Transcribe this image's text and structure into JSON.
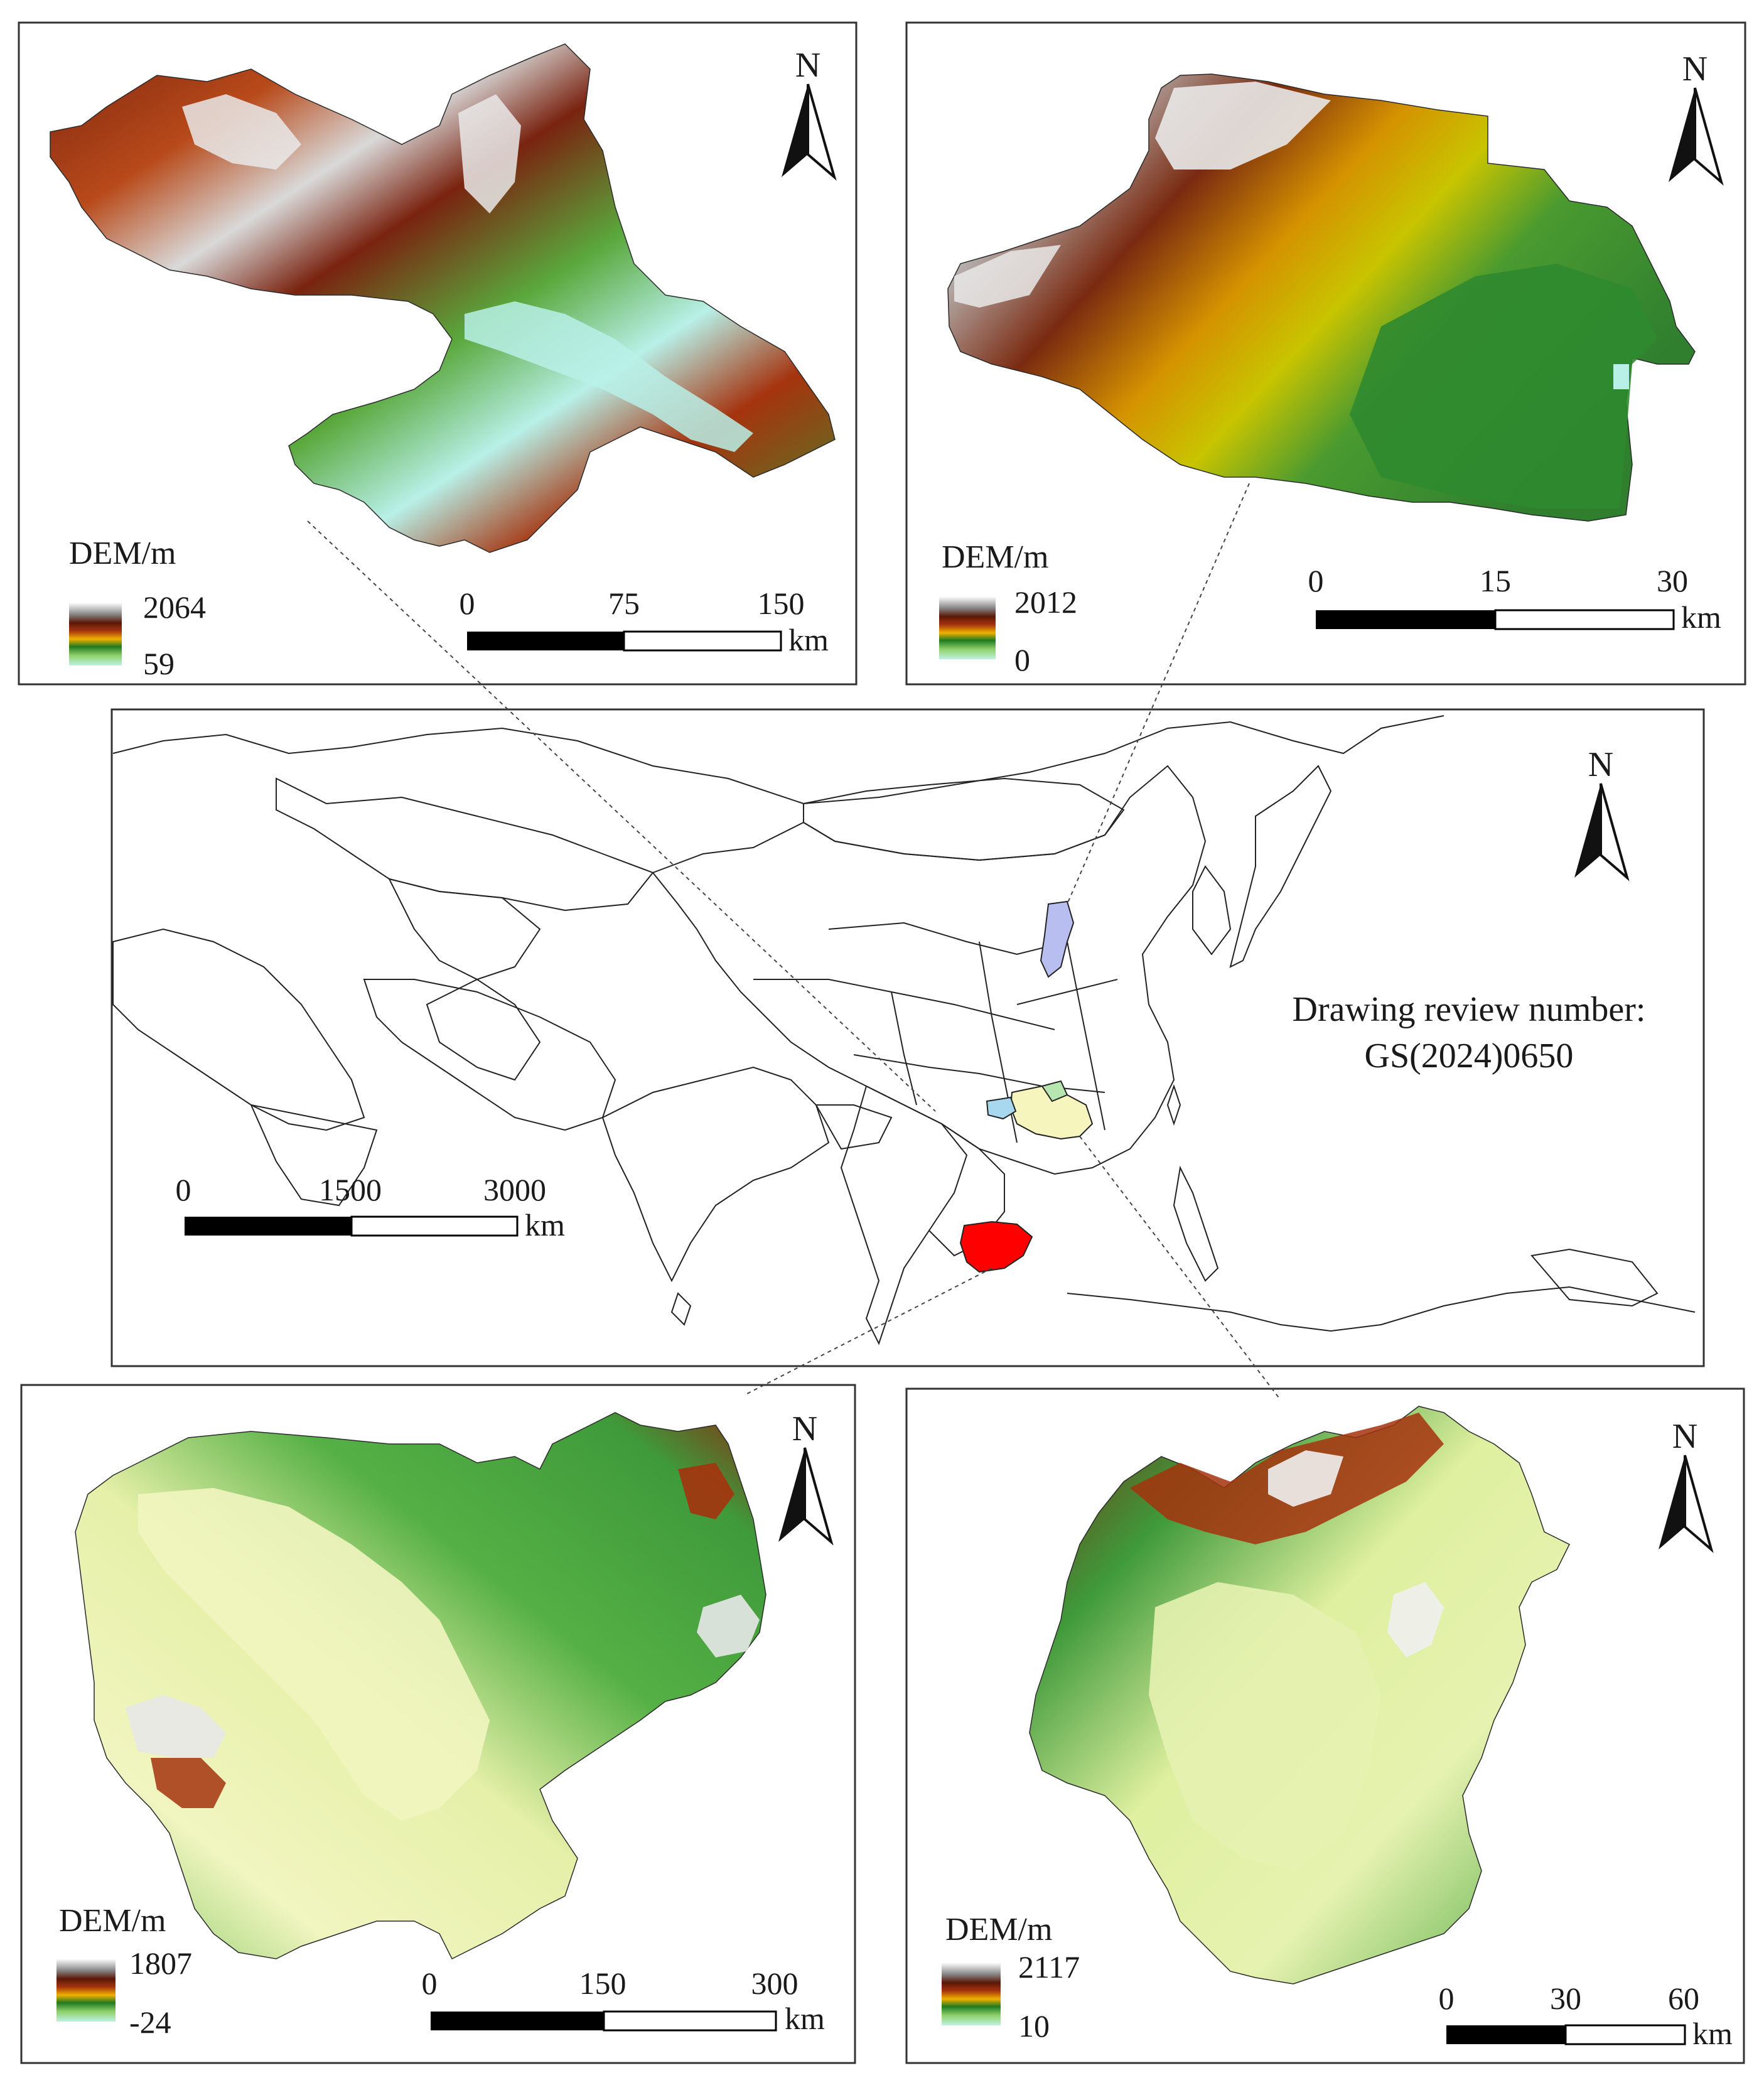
{
  "main_map": {
    "review_line1": "Drawing review number:",
    "review_line2": "GS(2024)0650",
    "north": "N",
    "scale": {
      "t0": "0",
      "t1": "1500",
      "t2": "3000",
      "unit": "km"
    },
    "highlight_colors": {
      "cambodia": "#ff0000",
      "shanxi": "#b8bff0",
      "guangxi": "#f7f5be",
      "guangxi_west": "#a8d8f0",
      "guangxi_north": "#b8e6b0"
    }
  },
  "panels": {
    "top_left": {
      "legend_title": "DEM/m",
      "max": "2064",
      "min": "59",
      "north": "N",
      "scale": {
        "t0": "0",
        "t1": "75",
        "t2": "150",
        "unit": "km"
      }
    },
    "top_right": {
      "legend_title": "DEM/m",
      "max": "2012",
      "min": "0",
      "north": "N",
      "scale": {
        "t0": "0",
        "t1": "15",
        "t2": "30",
        "unit": "km"
      }
    },
    "bottom_left": {
      "legend_title": "DEM/m",
      "max": "1807",
      "min": "-24",
      "north": "N",
      "scale": {
        "t0": "0",
        "t1": "150",
        "t2": "300",
        "unit": "km"
      }
    },
    "bottom_right": {
      "legend_title": "DEM/m",
      "max": "2117",
      "min": "10",
      "north": "N",
      "scale": {
        "t0": "0",
        "t1": "30",
        "t2": "60",
        "unit": "km"
      }
    }
  },
  "dem_colors": [
    "#ffffff",
    "#a0a0a0",
    "#6b1d0a",
    "#a5330e",
    "#d4731a",
    "#f0b000",
    "#1f7a1f",
    "#4cae3a",
    "#9fd46a",
    "#e9f2a8",
    "#b8f0e8"
  ]
}
